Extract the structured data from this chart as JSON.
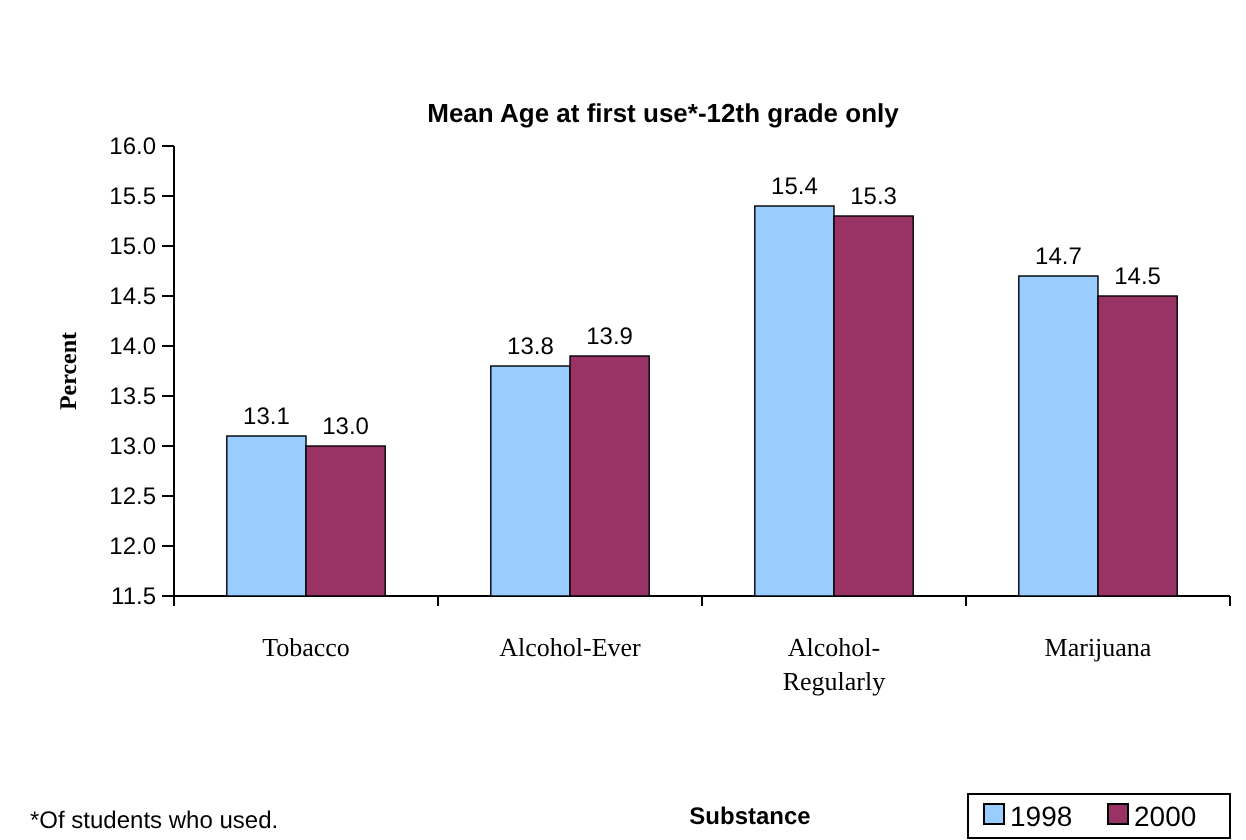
{
  "chart_data": {
    "type": "bar",
    "title": "Mean Age at first use*-12th grade only",
    "xlabel": "Substance",
    "ylabel": "Percent",
    "categories": [
      "Tobacco",
      "Alcohol-Ever",
      "Alcohol-Regularly",
      "Marijuana"
    ],
    "series": [
      {
        "name": "1998",
        "color": "#99ccff",
        "values": [
          13.1,
          13.8,
          15.4,
          14.7
        ],
        "value_labels": [
          "13.1",
          "13.8",
          "15.4",
          "14.7"
        ]
      },
      {
        "name": "2000",
        "color": "#993366",
        "values": [
          13.0,
          13.9,
          15.3,
          14.5
        ],
        "value_labels": [
          "13.0",
          "13.9",
          "15.3",
          "14.5"
        ]
      }
    ],
    "ylim": [
      11.5,
      16.0
    ],
    "yticks": [
      11.5,
      {
        "value": 12,
        "label": "12.0"
      },
      12.5,
      {
        "value": 13,
        "label": "13.0"
      },
      13.5,
      {
        "value": 14,
        "label": "14.0"
      },
      14.5,
      {
        "value": 15,
        "label": "15.0"
      },
      15.5,
      {
        "value": 16,
        "label": "16.0"
      }
    ],
    "grid": false,
    "legend": "bottom right",
    "annotations": [
      "*Of students who used."
    ]
  }
}
